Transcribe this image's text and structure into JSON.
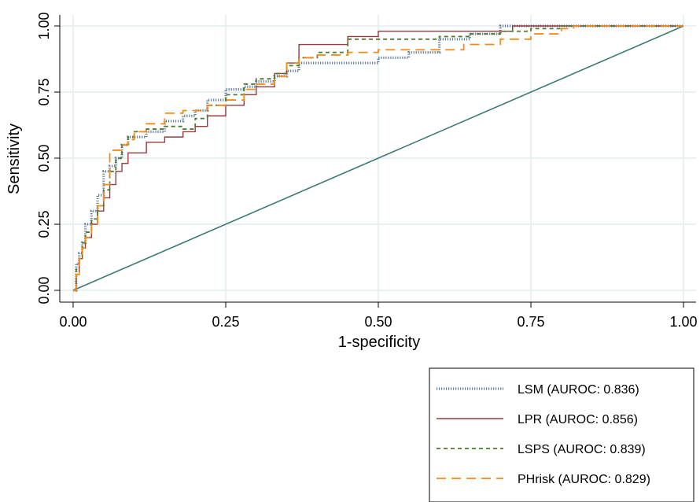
{
  "chart_data": {
    "type": "line",
    "xlabel": "1-specificity",
    "ylabel": "Sensitivity",
    "xlim": [
      0,
      1
    ],
    "ylim": [
      0,
      1
    ],
    "x_ticks": [
      "0.00",
      "0.25",
      "0.50",
      "0.75",
      "1.00"
    ],
    "y_ticks": [
      "0.00",
      "0.25",
      "0.50",
      "0.75",
      "1.00"
    ],
    "grid": true,
    "legend_position": "bottom-right",
    "reference_line": {
      "x": [
        0,
        1
      ],
      "y": [
        0,
        1
      ],
      "color": "#3d7a73"
    },
    "series": [
      {
        "name": "LSM (AUROC: 0.836)",
        "color": "#5f7c9c",
        "style": "dotted",
        "x": [
          0,
          0.005,
          0.01,
          0.015,
          0.02,
          0.03,
          0.04,
          0.05,
          0.06,
          0.07,
          0.08,
          0.09,
          0.1,
          0.12,
          0.15,
          0.18,
          0.2,
          0.22,
          0.25,
          0.28,
          0.3,
          0.33,
          0.35,
          0.37,
          0.45,
          0.5,
          0.55,
          0.6,
          0.65,
          0.7,
          0.75,
          0.8,
          0.85,
          0.9,
          0.95,
          1.0
        ],
        "y": [
          0,
          0.1,
          0.14,
          0.18,
          0.25,
          0.3,
          0.36,
          0.45,
          0.47,
          0.5,
          0.55,
          0.58,
          0.58,
          0.6,
          0.64,
          0.66,
          0.68,
          0.72,
          0.76,
          0.77,
          0.79,
          0.81,
          0.83,
          0.86,
          0.86,
          0.88,
          0.9,
          0.95,
          0.97,
          1.0,
          1.0,
          1.0,
          1.0,
          1.0,
          1.0,
          1.0
        ]
      },
      {
        "name": "LPR (AUROC: 0.856)",
        "color": "#9b3a3f",
        "style": "solid",
        "x": [
          0,
          0.005,
          0.01,
          0.015,
          0.02,
          0.03,
          0.04,
          0.05,
          0.06,
          0.07,
          0.08,
          0.09,
          0.1,
          0.12,
          0.15,
          0.18,
          0.2,
          0.22,
          0.25,
          0.28,
          0.3,
          0.33,
          0.35,
          0.37,
          0.38,
          0.45,
          0.5,
          0.55,
          0.6,
          0.65,
          0.7,
          0.72,
          0.75,
          0.8,
          0.85,
          0.9,
          1.0
        ],
        "y": [
          0,
          0.06,
          0.12,
          0.16,
          0.2,
          0.25,
          0.3,
          0.35,
          0.4,
          0.45,
          0.48,
          0.52,
          0.52,
          0.56,
          0.58,
          0.6,
          0.62,
          0.66,
          0.7,
          0.74,
          0.77,
          0.82,
          0.86,
          0.93,
          0.93,
          0.96,
          0.98,
          0.98,
          0.98,
          0.98,
          0.98,
          1.0,
          1.0,
          1.0,
          1.0,
          1.0,
          1.0
        ]
      },
      {
        "name": "LSPS (AUROC: 0.839)",
        "color": "#4f7a31",
        "style": "dashed",
        "x": [
          0,
          0.005,
          0.01,
          0.015,
          0.02,
          0.03,
          0.04,
          0.05,
          0.06,
          0.07,
          0.08,
          0.09,
          0.1,
          0.12,
          0.15,
          0.18,
          0.2,
          0.22,
          0.25,
          0.28,
          0.3,
          0.33,
          0.35,
          0.37,
          0.4,
          0.45,
          0.5,
          0.55,
          0.6,
          0.65,
          0.7,
          0.75,
          0.8,
          0.85,
          0.9,
          1.0
        ],
        "y": [
          0,
          0.08,
          0.12,
          0.18,
          0.22,
          0.27,
          0.32,
          0.38,
          0.45,
          0.5,
          0.55,
          0.58,
          0.6,
          0.61,
          0.62,
          0.61,
          0.65,
          0.7,
          0.74,
          0.78,
          0.8,
          0.82,
          0.85,
          0.88,
          0.9,
          0.95,
          0.95,
          0.95,
          0.96,
          0.97,
          0.98,
          0.99,
          1.0,
          1.0,
          1.0,
          1.0
        ]
      },
      {
        "name": "PHrisk (AUROC: 0.829)",
        "color": "#f28b1a",
        "style": "longdash",
        "x": [
          0,
          0.005,
          0.01,
          0.015,
          0.02,
          0.03,
          0.04,
          0.05,
          0.06,
          0.07,
          0.08,
          0.09,
          0.1,
          0.12,
          0.15,
          0.18,
          0.2,
          0.22,
          0.25,
          0.28,
          0.3,
          0.33,
          0.35,
          0.37,
          0.4,
          0.45,
          0.5,
          0.55,
          0.6,
          0.63,
          0.64,
          0.7,
          0.75,
          0.8,
          0.82,
          0.85,
          0.9,
          1.0
        ],
        "y": [
          0,
          0.06,
          0.12,
          0.16,
          0.2,
          0.25,
          0.32,
          0.4,
          0.53,
          0.53,
          0.55,
          0.57,
          0.6,
          0.63,
          0.67,
          0.68,
          0.68,
          0.7,
          0.72,
          0.76,
          0.78,
          0.81,
          0.86,
          0.88,
          0.89,
          0.9,
          0.91,
          0.91,
          0.91,
          0.91,
          0.93,
          0.95,
          0.97,
          0.99,
          1.0,
          1.0,
          1.0,
          1.0
        ]
      }
    ]
  }
}
